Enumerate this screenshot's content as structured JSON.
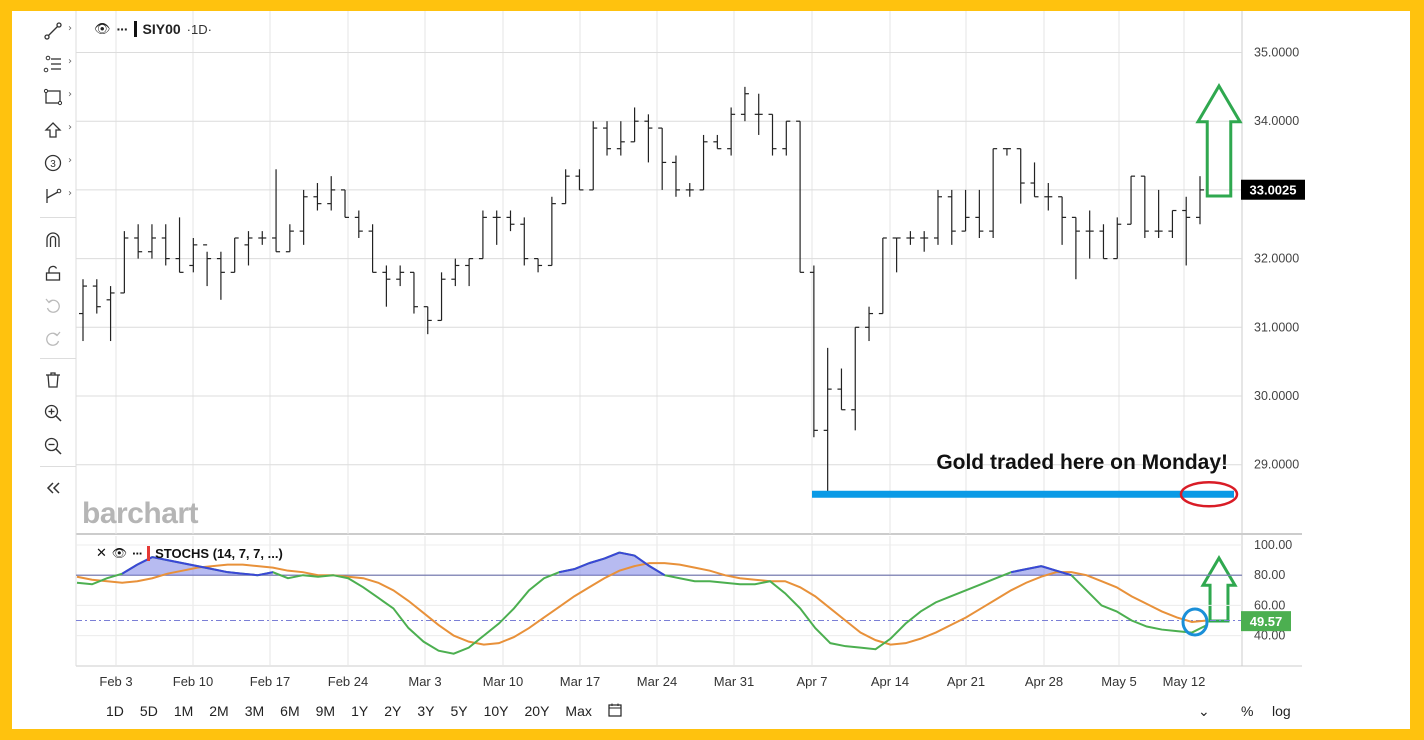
{
  "header": {
    "symbol": "SIY00",
    "timeframe": "·1D·",
    "eye_icon": "eye-icon",
    "more_icon": "more-dots-icon"
  },
  "indicator": {
    "label": "STOCHS (14, 7, 7, ...)"
  },
  "watermark": "barchart",
  "annotation": {
    "text": "Gold traded here on Monday!",
    "line_level": 28.57
  },
  "last_price": "33.0025",
  "stoch_last": "49.57",
  "colors": {
    "frame": "#ffc20e",
    "annotation_line": "#0a9ae6",
    "arrow": "#2fa84f",
    "oval": "#d91c26",
    "circle": "#1a8fd8",
    "stoch_k": "#4caf50",
    "stoch_d": "#e8913a",
    "stoch_fill": "#7b84e6",
    "last_price_bg": "#000000",
    "stoch_last_bg": "#4caf50"
  },
  "toolbar": {
    "icons": [
      "trend-line-icon",
      "fib-icon",
      "rectangle-icon",
      "arrow-up-icon",
      "number-marker-icon",
      "measure-icon",
      "magnet-icon",
      "lock-icon",
      "undo-icon",
      "redo-icon",
      "trash-icon",
      "zoom-in-icon",
      "zoom-out-icon",
      "collapse-icon"
    ]
  },
  "ranges": [
    "1D",
    "5D",
    "1M",
    "2M",
    "3M",
    "6M",
    "9M",
    "1Y",
    "2Y",
    "3Y",
    "5Y",
    "10Y",
    "20Y",
    "Max"
  ],
  "calendar_icon": "calendar-icon",
  "controls": {
    "percent": "%",
    "log": "log"
  },
  "chart_data": [
    {
      "type": "ohlc",
      "title": "SIY00",
      "ylim": [
        28.3,
        35.5
      ],
      "y_ticks": [
        "35.0000",
        "34.0000",
        "33.0000",
        "32.0000",
        "31.0000",
        "30.0000",
        "29.0000"
      ],
      "x_ticks": [
        "Feb 3",
        "Feb 10",
        "Feb 17",
        "Feb 24",
        "Mar 3",
        "Mar 10",
        "Mar 17",
        "Mar 24",
        "Mar 31",
        "Apr 7",
        "Apr 14",
        "Apr 21",
        "Apr 28",
        "May 5",
        "May 12"
      ],
      "bars": [
        [
          31.2,
          31.7,
          30.8,
          31.6
        ],
        [
          31.6,
          31.7,
          31.2,
          31.3
        ],
        [
          31.4,
          31.6,
          30.8,
          31.5
        ],
        [
          31.5,
          32.4,
          31.5,
          32.3
        ],
        [
          32.3,
          32.5,
          32.0,
          32.1
        ],
        [
          32.1,
          32.5,
          32.0,
          32.3
        ],
        [
          32.3,
          32.5,
          31.9,
          32.0
        ],
        [
          32.0,
          32.6,
          31.8,
          31.8
        ],
        [
          31.9,
          32.3,
          31.8,
          32.2
        ],
        [
          32.2,
          32.1,
          31.6,
          32.0
        ],
        [
          32.0,
          32.1,
          31.4,
          31.8
        ],
        [
          31.8,
          32.3,
          31.8,
          32.3
        ],
        [
          32.2,
          32.4,
          31.9,
          32.3
        ],
        [
          32.3,
          32.4,
          32.2,
          32.3
        ],
        [
          32.3,
          33.3,
          32.1,
          32.1
        ],
        [
          32.1,
          32.5,
          32.1,
          32.4
        ],
        [
          32.4,
          33.0,
          32.2,
          32.9
        ],
        [
          32.9,
          33.1,
          32.7,
          32.8
        ],
        [
          32.8,
          33.2,
          32.7,
          33.0
        ],
        [
          33.0,
          33.0,
          32.6,
          32.6
        ],
        [
          32.6,
          32.7,
          32.3,
          32.4
        ],
        [
          32.4,
          32.5,
          31.8,
          31.8
        ],
        [
          31.8,
          31.9,
          31.3,
          31.7
        ],
        [
          31.7,
          31.9,
          31.6,
          31.8
        ],
        [
          31.8,
          31.8,
          31.2,
          31.3
        ],
        [
          31.3,
          31.3,
          30.9,
          31.1
        ],
        [
          31.1,
          31.8,
          31.1,
          31.7
        ],
        [
          31.7,
          32.0,
          31.6,
          31.9
        ],
        [
          31.9,
          32.0,
          31.6,
          32.0
        ],
        [
          32.0,
          32.7,
          32.0,
          32.6
        ],
        [
          32.6,
          32.7,
          32.2,
          32.6
        ],
        [
          32.6,
          32.7,
          32.4,
          32.5
        ],
        [
          32.5,
          32.6,
          31.9,
          32.0
        ],
        [
          32.0,
          32.0,
          31.8,
          31.9
        ],
        [
          31.9,
          32.9,
          31.9,
          32.8
        ],
        [
          32.8,
          33.3,
          32.8,
          33.2
        ],
        [
          33.2,
          33.3,
          33.0,
          33.0
        ],
        [
          33.0,
          34.0,
          33.0,
          33.9
        ],
        [
          33.9,
          34.0,
          33.5,
          33.6
        ],
        [
          33.6,
          34.0,
          33.5,
          33.7
        ],
        [
          33.7,
          34.2,
          33.7,
          34.0
        ],
        [
          34.0,
          34.1,
          33.4,
          33.9
        ],
        [
          33.9,
          33.9,
          33.0,
          33.4
        ],
        [
          33.4,
          33.5,
          32.9,
          33.0
        ],
        [
          33.0,
          33.1,
          32.9,
          33.0
        ],
        [
          33.0,
          33.8,
          33.0,
          33.7
        ],
        [
          33.7,
          33.8,
          33.6,
          33.6
        ],
        [
          33.6,
          34.2,
          33.5,
          34.1
        ],
        [
          34.1,
          34.5,
          34.0,
          34.4
        ],
        [
          34.1,
          34.4,
          33.8,
          34.1
        ],
        [
          34.1,
          34.1,
          33.5,
          33.6
        ],
        [
          33.6,
          34.0,
          33.5,
          34.0
        ],
        [
          34.0,
          34.0,
          31.8,
          31.8
        ],
        [
          31.8,
          31.9,
          29.4,
          29.5
        ],
        [
          29.5,
          30.7,
          28.6,
          30.1
        ],
        [
          30.1,
          30.4,
          29.8,
          29.8
        ],
        [
          29.8,
          31.0,
          29.5,
          31.0
        ],
        [
          31.0,
          31.3,
          30.8,
          31.2
        ],
        [
          31.2,
          32.3,
          31.2,
          32.3
        ],
        [
          32.3,
          32.3,
          31.8,
          32.3
        ],
        [
          32.3,
          32.4,
          32.2,
          32.3
        ],
        [
          32.3,
          32.4,
          32.1,
          32.3
        ],
        [
          32.3,
          33.0,
          32.2,
          32.9
        ],
        [
          32.9,
          33.0,
          32.2,
          32.4
        ],
        [
          32.4,
          33.0,
          32.4,
          32.6
        ],
        [
          32.6,
          33.0,
          32.3,
          32.4
        ],
        [
          32.4,
          33.6,
          32.3,
          33.6
        ],
        [
          33.6,
          33.6,
          33.5,
          33.6
        ],
        [
          33.6,
          33.6,
          32.8,
          33.1
        ],
        [
          33.1,
          33.4,
          32.9,
          32.9
        ],
        [
          32.9,
          33.1,
          32.7,
          32.9
        ],
        [
          32.9,
          32.9,
          32.2,
          32.6
        ],
        [
          32.6,
          32.6,
          31.7,
          32.4
        ],
        [
          32.4,
          32.7,
          32.0,
          32.4
        ],
        [
          32.4,
          32.5,
          32.0,
          32.0
        ],
        [
          32.0,
          32.6,
          32.0,
          32.5
        ],
        [
          32.5,
          33.2,
          32.5,
          33.2
        ],
        [
          33.2,
          33.2,
          32.3,
          32.4
        ],
        [
          32.4,
          33.0,
          32.3,
          32.4
        ],
        [
          32.4,
          32.7,
          32.3,
          32.7
        ],
        [
          32.7,
          32.9,
          31.9,
          32.6
        ],
        [
          32.6,
          33.2,
          32.5,
          33.0
        ]
      ]
    },
    {
      "type": "line",
      "title": "STOCHS (14, 7, 7, ...)",
      "ylim": [
        20,
        100
      ],
      "y_ticks": [
        "100.00",
        "80.00",
        "60.00",
        "40.00"
      ],
      "overbought": 80,
      "midline": 50,
      "series": [
        {
          "name": "%K",
          "values": [
            75,
            74,
            78,
            81,
            87,
            92,
            90,
            88,
            86,
            84,
            82,
            81,
            80,
            82,
            78,
            80,
            79,
            80,
            78,
            72,
            65,
            58,
            45,
            36,
            30,
            28,
            32,
            40,
            48,
            58,
            70,
            78,
            82,
            84,
            88,
            91,
            95,
            93,
            86,
            80,
            78,
            76,
            76,
            75,
            74,
            74,
            76,
            68,
            58,
            45,
            35,
            33,
            32,
            31,
            38,
            48,
            56,
            62,
            66,
            70,
            74,
            78,
            82,
            84,
            86,
            83,
            80,
            70,
            60,
            56,
            50,
            46,
            44,
            43,
            42,
            47
          ]
        },
        {
          "name": "%D",
          "values": [
            79,
            77,
            76,
            75,
            76,
            78,
            81,
            83,
            85,
            86,
            87,
            87,
            86,
            85,
            83,
            82,
            80,
            80,
            79,
            78,
            75,
            70,
            63,
            55,
            47,
            40,
            36,
            34,
            35,
            39,
            45,
            52,
            59,
            66,
            72,
            78,
            83,
            86,
            88,
            88,
            87,
            85,
            83,
            80,
            78,
            77,
            76,
            76,
            72,
            66,
            58,
            50,
            42,
            37,
            34,
            35,
            38,
            42,
            47,
            52,
            58,
            64,
            70,
            75,
            79,
            82,
            82,
            80,
            76,
            72,
            66,
            61,
            56,
            52,
            49,
            50
          ]
        }
      ]
    }
  ]
}
